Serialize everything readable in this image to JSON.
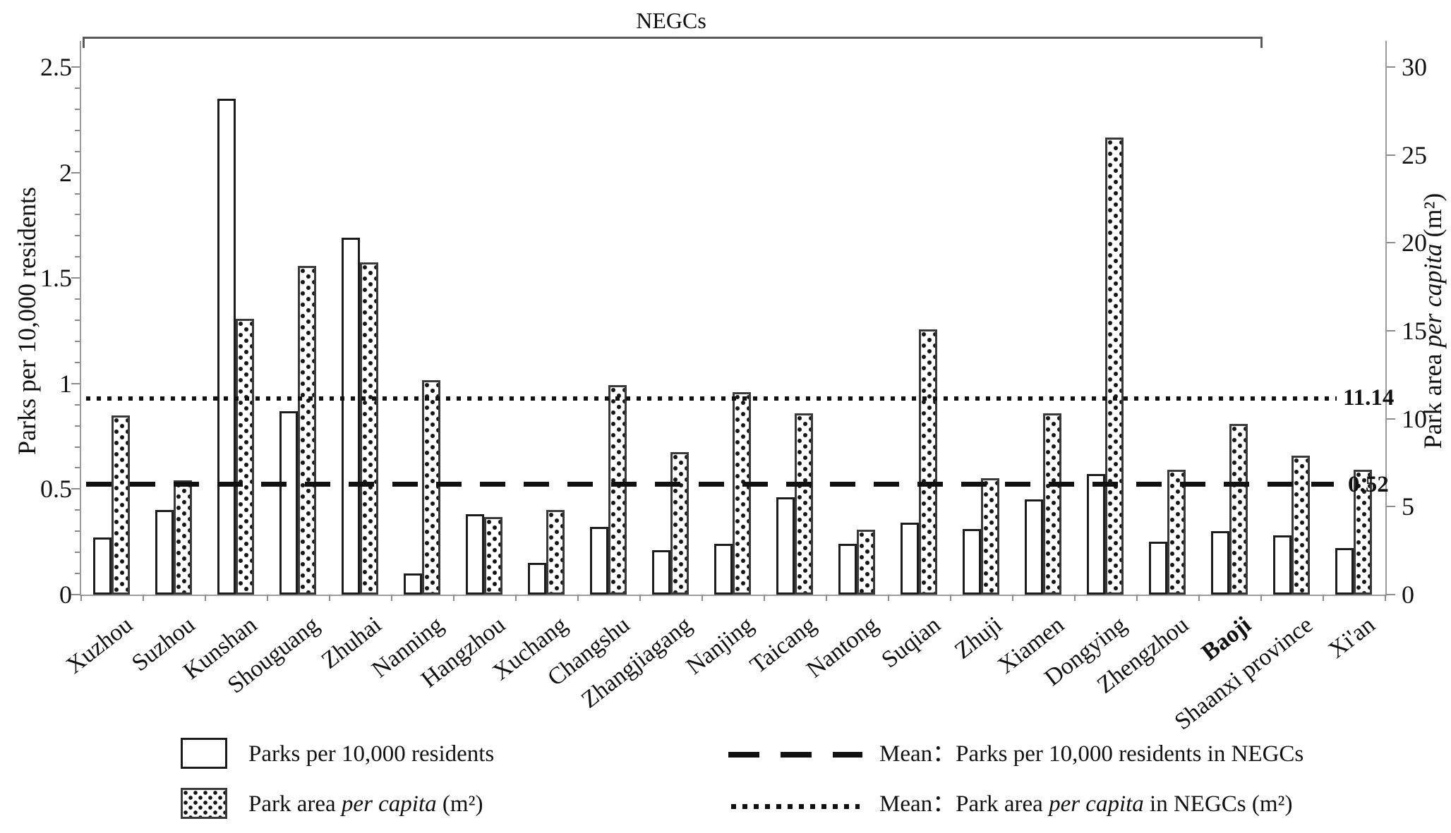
{
  "bracket": {
    "title": "NEGCs",
    "covers_from": "Xuzhou",
    "covers_to": "Baoji"
  },
  "left_axis": {
    "title": "Parks per 10,000 residents",
    "ticks": [
      "2.5",
      "2",
      "1.5",
      "1",
      "0.5",
      "0"
    ],
    "max": 2.5,
    "minor_step": 0.1
  },
  "right_axis": {
    "title_prefix": "Park area ",
    "title_italic": "per capita",
    "title_suffix": " (m²)",
    "ticks": [
      "30",
      "25",
      "20",
      "15",
      "10",
      "5",
      "0"
    ],
    "max": 30
  },
  "mean_lines": {
    "dashed": {
      "label": "0.52",
      "value_left_axis": 0.52
    },
    "dotted": {
      "label": "11.14",
      "value_right_axis": 11.14
    }
  },
  "chart_data": {
    "type": "bar",
    "title": "NEGCs",
    "categories": [
      "Xuzhou",
      "Suzhou",
      "Kunshan",
      "Shouguang",
      "Zhuhai",
      "Nanning",
      "Hangzhou",
      "Xuchang",
      "Changshu",
      "Zhangjiagang",
      "Nanjing",
      "Taicang",
      "Nantong",
      "Suqian",
      "Zhuji",
      "Xiamen",
      "Dongying",
      "Zhengzhou",
      "Baoji",
      "Shaanxi province",
      "Xi'an"
    ],
    "bold_category": "Baoji",
    "series": [
      {
        "name": "Parks per 10,000 residents",
        "axis": "left",
        "values": [
          0.27,
          0.4,
          2.35,
          0.87,
          1.69,
          0.1,
          0.38,
          0.15,
          0.32,
          0.21,
          0.24,
          0.46,
          0.24,
          0.34,
          0.31,
          0.45,
          0.57,
          0.25,
          0.3,
          0.28,
          0.22
        ]
      },
      {
        "name": "Park area per capita (m²)",
        "axis": "right",
        "values": [
          10.2,
          6.5,
          15.7,
          18.7,
          18.9,
          12.2,
          4.4,
          4.8,
          11.9,
          8.1,
          11.5,
          10.3,
          3.7,
          15.1,
          6.6,
          10.3,
          26.0,
          7.1,
          9.7,
          7.9,
          7.1
        ]
      }
    ],
    "left_ylim": [
      0,
      2.5
    ],
    "right_ylim": [
      0,
      30
    ],
    "mean_parks_in_NEGCs": 0.52,
    "mean_park_area_in_NEGCs": 11.14,
    "legend_position": "bottom",
    "grid": false
  },
  "legend": {
    "items": [
      {
        "prefix": "Parks per 10,000 residents",
        "italic": "",
        "suffix": ""
      },
      {
        "prefix": "Park area ",
        "italic": "per capita",
        "suffix": "  (m²)"
      },
      {
        "prefix": "Mean：Parks per 10,000 residents in NEGCs",
        "italic": "",
        "suffix": ""
      },
      {
        "prefix": "Mean：Park area ",
        "italic": "per capita",
        "suffix": " in NEGCs (m²)"
      }
    ]
  }
}
